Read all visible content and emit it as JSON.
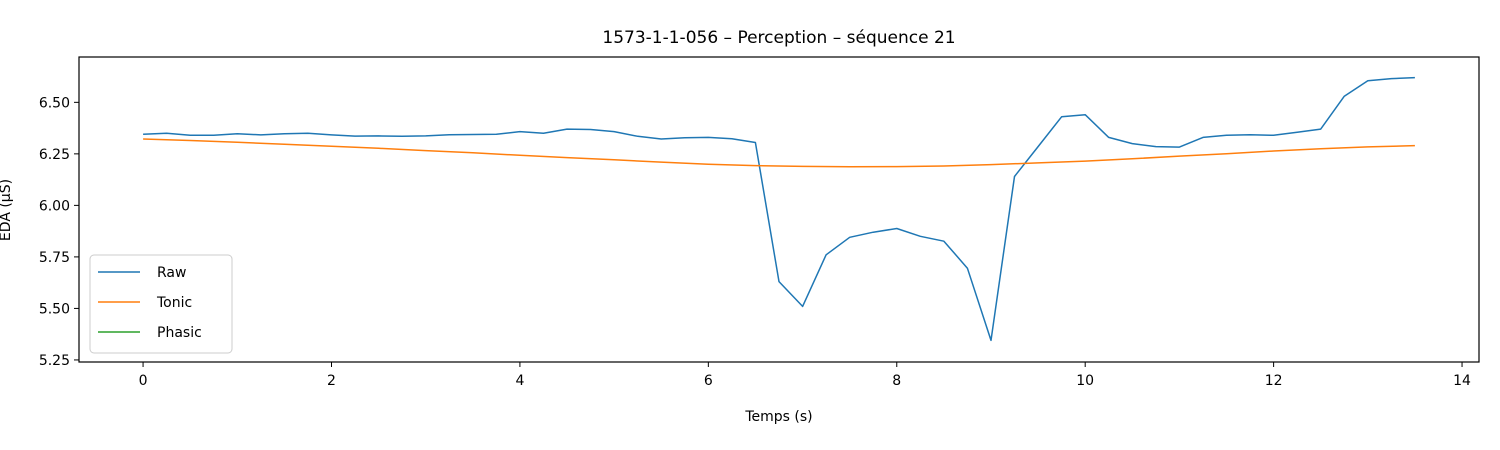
{
  "chart_data": {
    "type": "line",
    "title": "1573-1-1-056 – Perception – séquence 21",
    "xlabel": "Temps (s)",
    "ylabel": "EDA (µS)",
    "xlim": [
      -0.68,
      14.18
    ],
    "ylim": [
      5.24,
      6.72
    ],
    "xticks": [
      0,
      2,
      4,
      6,
      8,
      10,
      12,
      14
    ],
    "yticks": [
      5.25,
      5.5,
      5.75,
      6.0,
      6.25,
      6.5
    ],
    "ytick_labels": [
      "5.25",
      "5.50",
      "5.75",
      "6.00",
      "6.25",
      "6.50"
    ],
    "grid": false,
    "legend": "lower-left",
    "series": [
      {
        "name": "Raw",
        "color": "#1f77b4",
        "x": [
          0.0,
          0.25,
          0.5,
          0.75,
          1.0,
          1.25,
          1.5,
          1.75,
          2.0,
          2.25,
          2.5,
          2.75,
          3.0,
          3.25,
          3.5,
          3.75,
          4.0,
          4.25,
          4.5,
          4.75,
          5.0,
          5.25,
          5.5,
          5.75,
          6.0,
          6.25,
          6.5,
          6.75,
          7.0,
          7.25,
          7.5,
          7.75,
          8.0,
          8.25,
          8.5,
          8.75,
          9.0,
          9.25,
          9.5,
          9.75,
          10.0,
          10.25,
          10.5,
          10.75,
          11.0,
          11.25,
          11.5,
          11.75,
          12.0,
          12.25,
          12.5,
          12.75,
          13.0,
          13.25,
          13.5
        ],
        "y": [
          6.345,
          6.35,
          6.34,
          6.34,
          6.348,
          6.342,
          6.348,
          6.35,
          6.342,
          6.336,
          6.337,
          6.335,
          6.337,
          6.343,
          6.344,
          6.345,
          6.358,
          6.35,
          6.37,
          6.368,
          6.358,
          6.335,
          6.322,
          6.328,
          6.33,
          6.323,
          6.305,
          5.63,
          5.51,
          5.76,
          5.845,
          5.87,
          5.888,
          5.85,
          5.826,
          5.695,
          5.345,
          6.14,
          6.285,
          6.43,
          6.44,
          6.33,
          6.3,
          6.285,
          6.283,
          6.33,
          6.34,
          6.343,
          6.34,
          6.355,
          6.37,
          6.53,
          6.605,
          6.615,
          6.62
        ]
      },
      {
        "name": "Tonic",
        "color": "#ff7f0e",
        "x": [
          0.0,
          0.5,
          1.0,
          1.5,
          2.0,
          2.5,
          3.0,
          3.5,
          4.0,
          4.5,
          5.0,
          5.5,
          6.0,
          6.5,
          7.0,
          7.5,
          8.0,
          8.5,
          9.0,
          9.5,
          10.0,
          10.5,
          11.0,
          11.5,
          12.0,
          12.5,
          13.0,
          13.5
        ],
        "y": [
          6.322,
          6.315,
          6.306,
          6.297,
          6.287,
          6.277,
          6.266,
          6.255,
          6.243,
          6.232,
          6.221,
          6.21,
          6.2,
          6.193,
          6.189,
          6.187,
          6.188,
          6.191,
          6.198,
          6.206,
          6.215,
          6.226,
          6.239,
          6.251,
          6.264,
          6.275,
          6.284,
          6.29
        ]
      },
      {
        "name": "Phasic",
        "color": "#2ca02c",
        "x": [],
        "y": []
      }
    ]
  }
}
